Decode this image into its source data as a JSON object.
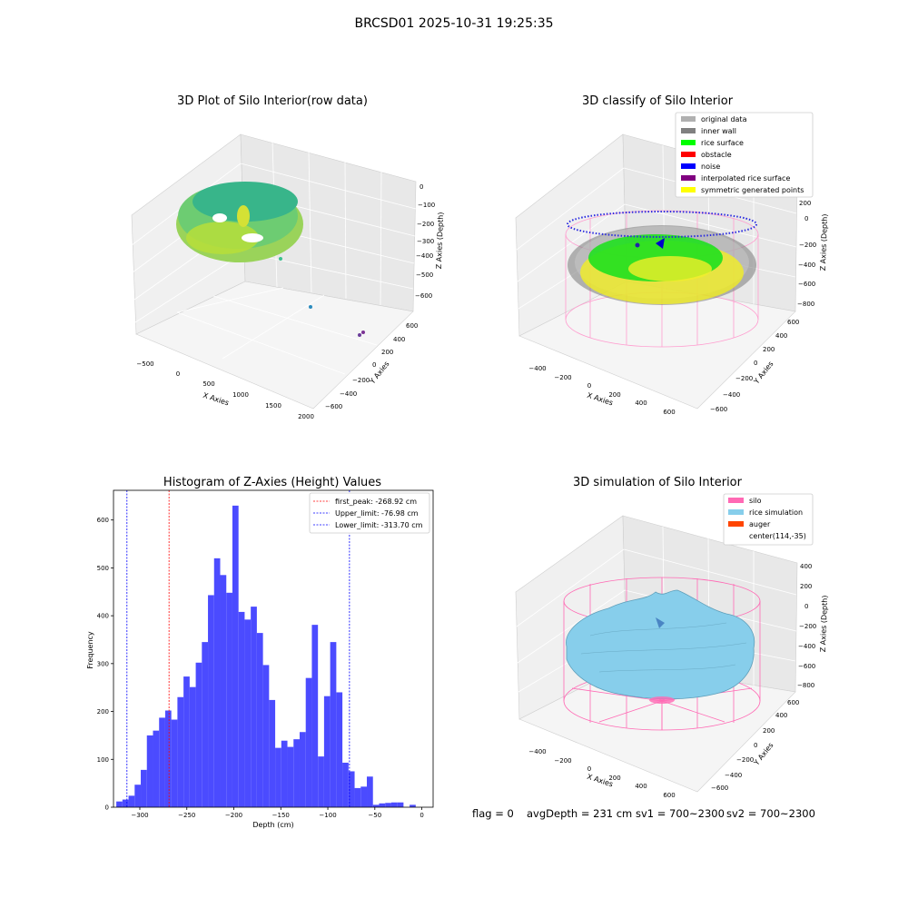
{
  "figure": {
    "suptitle": "BRCSD01 2025-10-31 19:25:35",
    "status": {
      "flag": "flag = 0",
      "avg_depth": "avgDepth = 231 cm",
      "sv1": "sv1 = 700~2300",
      "sv2": "sv2 = 700~2300"
    }
  },
  "colors": {
    "histogram_bar": "#4b4bff",
    "first_peak_line": "#ff0000",
    "limit_line": "#0000ff",
    "silo_wire": "#ff69b4",
    "rice_surface": "#87ceeb"
  },
  "chart_data": [
    {
      "type": "scatter",
      "subtype": "3d",
      "title": "3D Plot of Silo Interior(row data)",
      "xlabel": "X Axies",
      "ylabel": "Y Axies",
      "zlabel": "Z Axies (Depth)",
      "x_ticks": [
        "−500",
        "0",
        "500",
        "1000",
        "1500",
        "2000"
      ],
      "y_ticks": [
        "−600",
        "−400",
        "−200",
        "0",
        "200",
        "400",
        "600"
      ],
      "z_ticks": [
        "−600",
        "−500",
        "−400",
        "−300",
        "−200",
        "−100",
        "0"
      ],
      "grid": true
    },
    {
      "type": "scatter",
      "subtype": "3d",
      "title": "3D classify of Silo Interior",
      "xlabel": "X Axies",
      "ylabel": "Y Axies",
      "zlabel": "Z Axies (Depth)",
      "x_ticks": [
        "−400",
        "−200",
        "0",
        "200",
        "400",
        "600"
      ],
      "y_ticks": [
        "−600",
        "−400",
        "−200",
        "0",
        "200",
        "400",
        "600"
      ],
      "z_ticks": [
        "−800",
        "−600",
        "−400",
        "−200",
        "0",
        "200"
      ],
      "legend_position": "top-right",
      "legend": [
        {
          "label": "original data",
          "color": "#b0b0b0"
        },
        {
          "label": "inner wall",
          "color": "#808080"
        },
        {
          "label": "rice surface",
          "color": "#00ff00"
        },
        {
          "label": "obstacle",
          "color": "#ff0000"
        },
        {
          "label": "noise",
          "color": "#0000ff"
        },
        {
          "label": "interpolated rice surface",
          "color": "#800080"
        },
        {
          "label": "symmetric generated points",
          "color": "#ffff00"
        }
      ],
      "grid": true
    },
    {
      "type": "bar",
      "subtype": "histogram",
      "title": "Histogram of Z-Axies (Height) Values",
      "xlabel": "Depth (cm)",
      "ylabel": "Frequency",
      "xlim": [
        -328,
        12
      ],
      "ylim": [
        0,
        662
      ],
      "x_ticks": [
        -300,
        -250,
        -200,
        -150,
        -100,
        -50,
        0
      ],
      "x_tick_labels": [
        "−300",
        "−250",
        "−200",
        "−150",
        "−100",
        "−50",
        "0"
      ],
      "y_ticks": [
        0,
        100,
        200,
        300,
        400,
        500,
        600
      ],
      "y_tick_labels": [
        "0",
        "100",
        "200",
        "300",
        "400",
        "500",
        "600"
      ],
      "bin_start": -325,
      "bin_width": 6.5,
      "values": [
        12,
        16,
        24,
        47,
        78,
        150,
        160,
        187,
        202,
        183,
        230,
        273,
        251,
        302,
        345,
        443,
        520,
        485,
        448,
        630,
        408,
        392,
        419,
        364,
        297,
        224,
        124,
        139,
        126,
        142,
        157,
        270,
        381,
        106,
        232,
        345,
        240,
        93,
        75,
        40,
        43,
        64,
        5,
        8,
        9,
        10,
        10,
        0,
        5
      ],
      "lines": [
        {
          "label": "first_peak: -268.92 cm",
          "x": -268.92,
          "color": "#ff0000"
        },
        {
          "label": "Upper_limit: -76.98 cm",
          "x": -76.98,
          "color": "#0000ff"
        },
        {
          "label": "Lower_limit: -313.70 cm",
          "x": -313.7,
          "color": "#0000ff"
        }
      ],
      "legend_position": "top-right"
    },
    {
      "type": "area",
      "subtype": "3d-surface",
      "title": "3D simulation of Silo Interior",
      "xlabel": "X Axies",
      "ylabel": "Y Axies",
      "zlabel": "Z Axies (Depth)",
      "x_ticks": [
        "−400",
        "−200",
        "0",
        "200",
        "400",
        "600"
      ],
      "y_ticks": [
        "−600",
        "−400",
        "−200",
        "0",
        "200",
        "400",
        "600"
      ],
      "z_ticks": [
        "−800",
        "−600",
        "−400",
        "−200",
        "0",
        "200",
        "400"
      ],
      "legend_position": "top-right",
      "legend": [
        {
          "label": "silo",
          "color": "#ff69b4"
        },
        {
          "label": "rice simulation",
          "color": "#87ceeb"
        },
        {
          "label": "auger",
          "color": "#ff4500"
        },
        {
          "label": "center(114,-35)",
          "color": ""
        }
      ],
      "grid": true
    }
  ]
}
